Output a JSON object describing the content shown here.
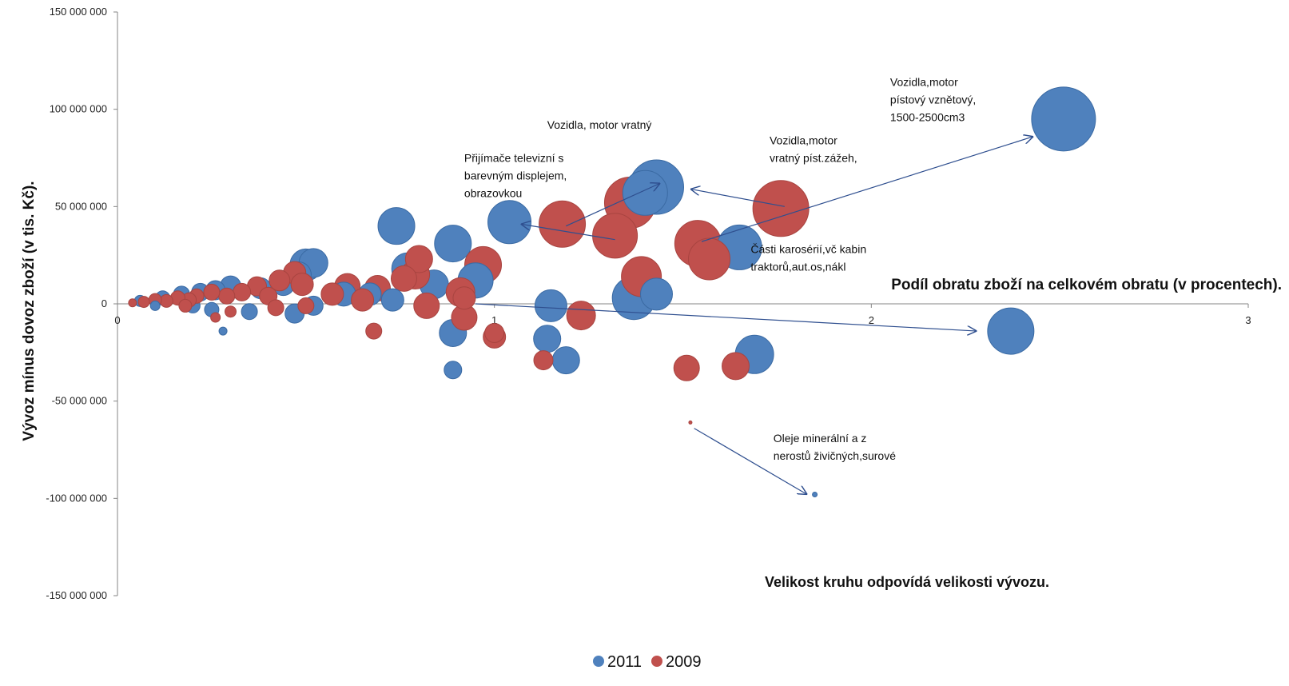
{
  "chart_data": {
    "type": "scatter",
    "variant": "bubble",
    "xlabel": "Podíl obratu zboží na celkovém obratu (v procentech).",
    "ylabel": "Vývoz mínus dovoz zboží (v tis. Kč).",
    "note": "Velikost kruhu odpovídá velikosti vývozu.",
    "xlim": [
      0,
      3
    ],
    "ylim": [
      -150000000,
      150000000
    ],
    "x_ticks": [
      {
        "value": 0,
        "label": "0"
      },
      {
        "value": 1,
        "label": "1"
      },
      {
        "value": 2,
        "label": "2"
      },
      {
        "value": 3,
        "label": "3"
      }
    ],
    "y_ticks": [
      {
        "value": 150000000,
        "label": "150 000 000"
      },
      {
        "value": 100000000,
        "label": "100 000 000"
      },
      {
        "value": 50000000,
        "label": "50 000 000"
      },
      {
        "value": 0,
        "label": "0"
      },
      {
        "value": -50000000,
        "label": "-50 000 000"
      },
      {
        "value": -100000000,
        "label": "-100 000 000"
      },
      {
        "value": -150000000,
        "label": "-150 000 000"
      }
    ],
    "grid": false,
    "legend_position": "bottom",
    "series": [
      {
        "name": "2011",
        "color": "#4f81bd",
        "points": [
          {
            "x": 2.51,
            "y": 95000000,
            "size": 40
          },
          {
            "x": 1.43,
            "y": 60000000,
            "size": 34
          },
          {
            "x": 1.4,
            "y": 57000000,
            "size": 28
          },
          {
            "x": 1.65,
            "y": 29000000,
            "size": 28
          },
          {
            "x": 1.04,
            "y": 42000000,
            "size": 27
          },
          {
            "x": 0.74,
            "y": 40000000,
            "size": 23
          },
          {
            "x": 0.89,
            "y": 31000000,
            "size": 23
          },
          {
            "x": 0.77,
            "y": 18000000,
            "size": 20
          },
          {
            "x": 0.84,
            "y": 10000000,
            "size": 18
          },
          {
            "x": 0.95,
            "y": 12000000,
            "size": 22
          },
          {
            "x": 1.37,
            "y": 3000000,
            "size": 27
          },
          {
            "x": 1.43,
            "y": 5000000,
            "size": 20
          },
          {
            "x": 1.15,
            "y": -1000000,
            "size": 20
          },
          {
            "x": 2.37,
            "y": -14000000,
            "size": 29
          },
          {
            "x": 1.69,
            "y": -26000000,
            "size": 24
          },
          {
            "x": 1.14,
            "y": -18000000,
            "size": 17
          },
          {
            "x": 1.19,
            "y": -29000000,
            "size": 17
          },
          {
            "x": 0.89,
            "y": -15000000,
            "size": 17
          },
          {
            "x": 0.89,
            "y": -34000000,
            "size": 11
          },
          {
            "x": 1.85,
            "y": -98000000,
            "size": 3
          },
          {
            "x": 0.5,
            "y": 20000000,
            "size": 20
          },
          {
            "x": 0.52,
            "y": 21000000,
            "size": 18
          },
          {
            "x": 0.48,
            "y": 15000000,
            "size": 16
          },
          {
            "x": 0.44,
            "y": 10000000,
            "size": 14
          },
          {
            "x": 0.38,
            "y": 8000000,
            "size": 13
          },
          {
            "x": 0.3,
            "y": 9000000,
            "size": 13
          },
          {
            "x": 0.26,
            "y": 7000000,
            "size": 12
          },
          {
            "x": 0.22,
            "y": 6000000,
            "size": 11
          },
          {
            "x": 0.17,
            "y": 5000000,
            "size": 10
          },
          {
            "x": 0.12,
            "y": 3000000,
            "size": 9
          },
          {
            "x": 0.06,
            "y": 1500000,
            "size": 7
          },
          {
            "x": 0.6,
            "y": 5000000,
            "size": 15
          },
          {
            "x": 0.67,
            "y": 5000000,
            "size": 14
          },
          {
            "x": 0.73,
            "y": 2000000,
            "size": 14
          },
          {
            "x": 0.52,
            "y": -1000000,
            "size": 12
          },
          {
            "x": 0.47,
            "y": -5000000,
            "size": 12
          },
          {
            "x": 0.35,
            "y": -4000000,
            "size": 10
          },
          {
            "x": 0.28,
            "y": -14000000,
            "size": 5
          },
          {
            "x": 0.25,
            "y": -3000000,
            "size": 9
          },
          {
            "x": 0.2,
            "y": -1000000,
            "size": 9
          },
          {
            "x": 0.1,
            "y": -1000000,
            "size": 6
          }
        ]
      },
      {
        "name": "2009",
        "color": "#c0504d",
        "points": [
          {
            "x": 1.36,
            "y": 52000000,
            "size": 32
          },
          {
            "x": 1.76,
            "y": 49000000,
            "size": 35
          },
          {
            "x": 1.18,
            "y": 41000000,
            "size": 29
          },
          {
            "x": 1.32,
            "y": 35000000,
            "size": 28
          },
          {
            "x": 1.54,
            "y": 31000000,
            "size": 29
          },
          {
            "x": 1.57,
            "y": 23000000,
            "size": 26
          },
          {
            "x": 0.97,
            "y": 20000000,
            "size": 23
          },
          {
            "x": 1.39,
            "y": 14000000,
            "size": 25
          },
          {
            "x": 0.8,
            "y": 23000000,
            "size": 17
          },
          {
            "x": 0.79,
            "y": 15000000,
            "size": 18
          },
          {
            "x": 0.76,
            "y": 13000000,
            "size": 16
          },
          {
            "x": 0.91,
            "y": 6000000,
            "size": 18
          },
          {
            "x": 0.92,
            "y": 3000000,
            "size": 14
          },
          {
            "x": 0.82,
            "y": -1000000,
            "size": 16
          },
          {
            "x": 0.92,
            "y": -7000000,
            "size": 16
          },
          {
            "x": 1.23,
            "y": -6000000,
            "size": 18
          },
          {
            "x": 1.0,
            "y": -17000000,
            "size": 14
          },
          {
            "x": 1.0,
            "y": -15000000,
            "size": 12
          },
          {
            "x": 1.13,
            "y": -29000000,
            "size": 12
          },
          {
            "x": 1.51,
            "y": -33000000,
            "size": 16
          },
          {
            "x": 1.64,
            "y": -32000000,
            "size": 17
          },
          {
            "x": 1.52,
            "y": -61000000,
            "size": 2
          },
          {
            "x": 0.69,
            "y": 8000000,
            "size": 16
          },
          {
            "x": 0.61,
            "y": 9000000,
            "size": 16
          },
          {
            "x": 0.57,
            "y": 5000000,
            "size": 14
          },
          {
            "x": 0.65,
            "y": 2000000,
            "size": 14
          },
          {
            "x": 0.68,
            "y": -14000000,
            "size": 10
          },
          {
            "x": 0.47,
            "y": 16000000,
            "size": 14
          },
          {
            "x": 0.49,
            "y": 10000000,
            "size": 14
          },
          {
            "x": 0.43,
            "y": 12000000,
            "size": 13
          },
          {
            "x": 0.37,
            "y": 9000000,
            "size": 12
          },
          {
            "x": 0.33,
            "y": 6000000,
            "size": 11
          },
          {
            "x": 0.4,
            "y": 4000000,
            "size": 11
          },
          {
            "x": 0.29,
            "y": 4000000,
            "size": 10
          },
          {
            "x": 0.25,
            "y": 6000000,
            "size": 10
          },
          {
            "x": 0.21,
            "y": 4000000,
            "size": 9
          },
          {
            "x": 0.19,
            "y": 2000000,
            "size": 9
          },
          {
            "x": 0.16,
            "y": 3000000,
            "size": 9
          },
          {
            "x": 0.13,
            "y": 1500000,
            "size": 8
          },
          {
            "x": 0.1,
            "y": 2000000,
            "size": 8
          },
          {
            "x": 0.07,
            "y": 1000000,
            "size": 7
          },
          {
            "x": 0.04,
            "y": 500000,
            "size": 5
          },
          {
            "x": 0.26,
            "y": -7000000,
            "size": 6
          },
          {
            "x": 0.42,
            "y": -2000000,
            "size": 10
          },
          {
            "x": 0.5,
            "y": -1000000,
            "size": 10
          },
          {
            "x": 0.3,
            "y": -4000000,
            "size": 7
          },
          {
            "x": 0.18,
            "y": -1000000,
            "size": 8
          }
        ]
      }
    ],
    "annotations": [
      {
        "lines": [
          "Vozidla,motor",
          "pístový vznětový,",
          "1500-2500cm3"
        ],
        "text_at": [
          2.05,
          112000000
        ],
        "arrow_from": [
          1.55,
          32000000
        ],
        "arrow_to": [
          2.43,
          86000000
        ]
      },
      {
        "lines": [
          "Vozidla, motor vratný"
        ],
        "text_at": [
          1.14,
          90000000
        ],
        "arrow_from": [
          1.19,
          40000000
        ],
        "arrow_to": [
          1.44,
          62000000
        ]
      },
      {
        "lines": [
          "Vozidla,motor",
          "vratný píst.zážeh,"
        ],
        "text_at": [
          1.73,
          82000000
        ],
        "arrow_from": [
          1.77,
          50000000
        ],
        "arrow_to": [
          1.52,
          59000000
        ]
      },
      {
        "lines": [
          "Přijímače televizní s",
          "barevným displejem,",
          "obrazovkou"
        ],
        "text_at": [
          0.92,
          73000000
        ],
        "arrow_from": [
          1.32,
          33000000
        ],
        "arrow_to": [
          1.07,
          41000000
        ]
      },
      {
        "lines": [
          "Části karosérií,vč kabin",
          "traktorů,aut.os,nákl"
        ],
        "text_at": [
          1.68,
          26000000
        ],
        "arrow_from": [
          0.95,
          0
        ],
        "arrow_to": [
          2.28,
          -14000000
        ]
      },
      {
        "lines": [
          "Oleje minerální a z",
          "nerostů živičných,surové"
        ],
        "text_at": [
          1.74,
          -71000000
        ],
        "arrow_from": [
          1.53,
          -64000000
        ],
        "arrow_to": [
          1.83,
          -98000000
        ]
      }
    ]
  }
}
